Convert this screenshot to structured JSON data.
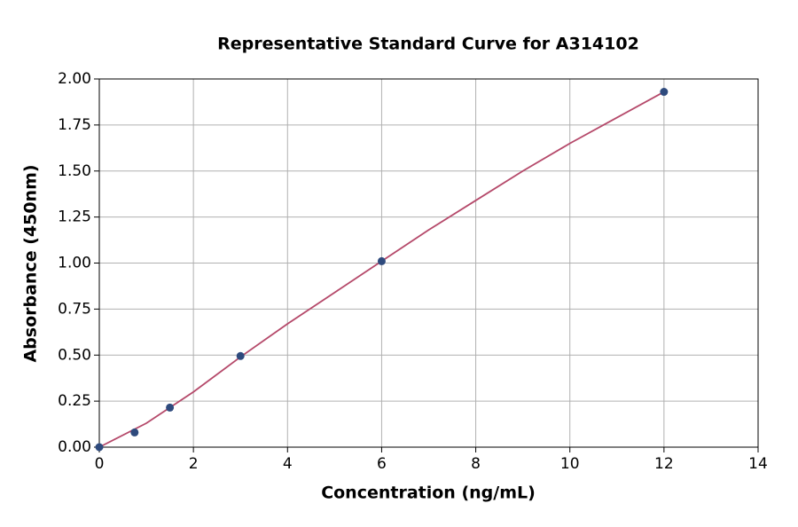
{
  "chart_data": {
    "type": "scatter",
    "title": "Representative Standard Curve for A314102",
    "xlabel": "Concentration (ng/mL)",
    "ylabel": "Absorbance (450nm)",
    "xlim": [
      0,
      14
    ],
    "xticks": [
      0,
      2,
      4,
      6,
      8,
      10,
      12,
      14
    ],
    "ylim": [
      0,
      2
    ],
    "yticks": [
      {
        "value": 0,
        "label": "0.00"
      },
      {
        "value": 0.25,
        "label": "0.25"
      },
      {
        "value": 0.5,
        "label": "0.50"
      },
      {
        "value": 0.75,
        "label": "0.75"
      },
      {
        "value": 1,
        "label": "1.00"
      },
      {
        "value": 1.25,
        "label": "1.25"
      },
      {
        "value": 1.5,
        "label": "1.50"
      },
      {
        "value": 1.75,
        "label": "1.75"
      },
      {
        "value": 2,
        "label": "2.00"
      }
    ],
    "grid": true,
    "series": [
      {
        "type": "scatter",
        "color": "#2e4a7d",
        "x": [
          0,
          0.75,
          1.5,
          3,
          6,
          12
        ],
        "values": [
          0,
          0.08,
          0.215,
          0.495,
          1.01,
          1.93
        ]
      },
      {
        "type": "line",
        "color": "#b5496a",
        "x": [
          0,
          1,
          2,
          3,
          4,
          5,
          6,
          7,
          8,
          9,
          10,
          11,
          12
        ],
        "values": [
          0,
          0.13,
          0.3,
          0.49,
          0.67,
          0.84,
          1.01,
          1.18,
          1.34,
          1.5,
          1.65,
          1.79,
          1.93
        ]
      }
    ]
  }
}
